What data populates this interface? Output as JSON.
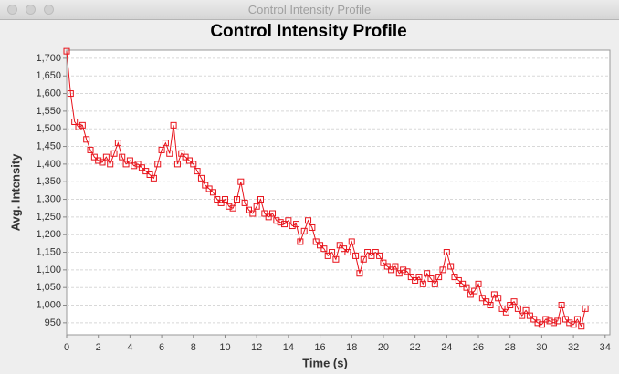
{
  "window": {
    "title": "Control Intensity Profile"
  },
  "chart_data": {
    "type": "line",
    "title": "Control Intensity Profile",
    "x_label": "Time (s)",
    "y_label": "Avg. Intensity",
    "color": "#e8131b",
    "marker": "square",
    "grid": true,
    "xlim": [
      0,
      34.3
    ],
    "xticks": [
      0,
      2,
      4,
      6,
      8,
      10,
      12,
      14,
      16,
      18,
      20,
      22,
      24,
      26,
      28,
      30,
      32,
      34
    ],
    "ylim": [
      916,
      1723
    ],
    "yticks": [
      {
        "value": 950,
        "label": "950"
      },
      {
        "value": 1000,
        "label": "1,000"
      },
      {
        "value": 1050,
        "label": "1,050"
      },
      {
        "value": 1100,
        "label": "1,100"
      },
      {
        "value": 1150,
        "label": "1,150"
      },
      {
        "value": 1200,
        "label": "1,200"
      },
      {
        "value": 1250,
        "label": "1,250"
      },
      {
        "value": 1300,
        "label": "1,300"
      },
      {
        "value": 1350,
        "label": "1,350"
      },
      {
        "value": 1400,
        "label": "1,400"
      },
      {
        "value": 1450,
        "label": "1,450"
      },
      {
        "value": 1500,
        "label": "1,500"
      },
      {
        "value": 1550,
        "label": "1,550"
      },
      {
        "value": 1600,
        "label": "1,600"
      },
      {
        "value": 1650,
        "label": "1,650"
      },
      {
        "value": 1700,
        "label": "1,700"
      }
    ],
    "x": [
      0,
      0.25,
      0.5,
      0.75,
      1,
      1.25,
      1.5,
      1.75,
      2,
      2.25,
      2.5,
      2.75,
      3,
      3.25,
      3.5,
      3.75,
      4,
      4.25,
      4.5,
      4.75,
      5,
      5.25,
      5.5,
      5.75,
      6,
      6.25,
      6.5,
      6.75,
      7,
      7.25,
      7.5,
      7.75,
      8,
      8.25,
      8.5,
      8.75,
      9,
      9.25,
      9.5,
      9.75,
      10,
      10.25,
      10.5,
      10.75,
      11,
      11.25,
      11.5,
      11.75,
      12,
      12.25,
      12.5,
      12.75,
      13,
      13.25,
      13.5,
      13.75,
      14,
      14.25,
      14.5,
      14.75,
      15,
      15.25,
      15.5,
      15.75,
      16,
      16.25,
      16.5,
      16.75,
      17,
      17.25,
      17.5,
      17.75,
      18,
      18.25,
      18.5,
      18.75,
      19,
      19.25,
      19.5,
      19.75,
      20,
      20.25,
      20.5,
      20.75,
      21,
      21.25,
      21.5,
      21.75,
      22,
      22.25,
      22.5,
      22.75,
      23,
      23.25,
      23.5,
      23.75,
      24,
      24.25,
      24.5,
      24.75,
      25,
      25.25,
      25.5,
      25.75,
      26,
      26.25,
      26.5,
      26.75,
      27,
      27.25,
      27.5,
      27.75,
      28,
      28.25,
      28.5,
      28.75,
      29,
      29.25,
      29.5,
      29.75,
      30,
      30.25,
      30.5,
      30.75,
      31,
      31.25,
      31.5,
      31.75,
      32,
      32.25,
      32.5,
      32.75
    ],
    "values": [
      1720,
      1600,
      1520,
      1505,
      1510,
      1470,
      1440,
      1420,
      1410,
      1405,
      1420,
      1400,
      1430,
      1460,
      1420,
      1400,
      1410,
      1395,
      1400,
      1390,
      1380,
      1370,
      1360,
      1400,
      1440,
      1460,
      1430,
      1510,
      1400,
      1430,
      1420,
      1410,
      1400,
      1380,
      1360,
      1340,
      1330,
      1320,
      1300,
      1290,
      1300,
      1280,
      1275,
      1300,
      1350,
      1290,
      1270,
      1260,
      1280,
      1300,
      1260,
      1250,
      1260,
      1240,
      1235,
      1230,
      1240,
      1225,
      1230,
      1180,
      1210,
      1240,
      1220,
      1180,
      1170,
      1160,
      1140,
      1150,
      1130,
      1170,
      1160,
      1150,
      1180,
      1140,
      1090,
      1130,
      1150,
      1140,
      1150,
      1140,
      1120,
      1110,
      1100,
      1110,
      1090,
      1100,
      1095,
      1080,
      1070,
      1080,
      1060,
      1090,
      1075,
      1060,
      1080,
      1100,
      1150,
      1110,
      1080,
      1070,
      1060,
      1050,
      1030,
      1040,
      1060,
      1020,
      1010,
      1000,
      1030,
      1020,
      990,
      980,
      1000,
      1010,
      990,
      970,
      985,
      970,
      960,
      950,
      945,
      960,
      955,
      950,
      955,
      1000,
      960,
      950,
      945,
      960,
      940,
      990
    ]
  }
}
